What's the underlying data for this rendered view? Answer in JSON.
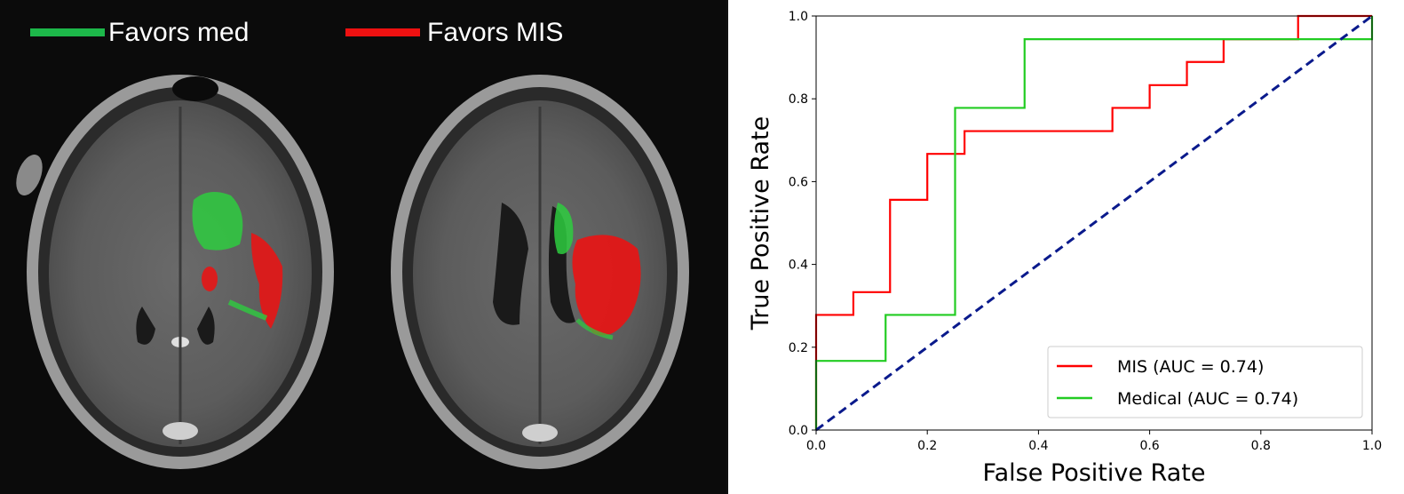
{
  "mri_legend": {
    "items": [
      {
        "label": "Favors med",
        "color": "#1db84a"
      },
      {
        "label": "Favors MIS",
        "color": "#ee1111"
      }
    ]
  },
  "chart_data": {
    "type": "line",
    "title": "",
    "xlabel": "False Positive Rate",
    "ylabel": "True Positive Rate",
    "xlim": [
      0.0,
      1.0
    ],
    "ylim": [
      0.0,
      1.0
    ],
    "xticks": [
      "0.0",
      "0.2",
      "0.4",
      "0.6",
      "0.8",
      "1.0"
    ],
    "yticks": [
      "0.0",
      "0.2",
      "0.4",
      "0.6",
      "0.8",
      "1.0"
    ],
    "grid": false,
    "legend_position": "lower-right",
    "series": [
      {
        "name": "MIS (AUC = 0.74)",
        "color": "#ff0000",
        "style": "solid",
        "x": [
          0,
          0,
          0.067,
          0.067,
          0.133,
          0.133,
          0.2,
          0.2,
          0.267,
          0.267,
          0.533,
          0.533,
          0.6,
          0.6,
          0.667,
          0.667,
          0.733,
          0.733,
          0.867,
          0.867,
          1.0
        ],
        "y": [
          0,
          0.278,
          0.278,
          0.333,
          0.333,
          0.556,
          0.556,
          0.667,
          0.667,
          0.722,
          0.722,
          0.778,
          0.778,
          0.833,
          0.833,
          0.889,
          0.889,
          0.944,
          0.944,
          1.0,
          1.0
        ]
      },
      {
        "name": "Medical (AUC = 0.74)",
        "color": "#22cc22",
        "style": "solid",
        "x": [
          0,
          0,
          0.125,
          0.125,
          0.25,
          0.25,
          0.375,
          0.375,
          1.0,
          1.0
        ],
        "y": [
          0,
          0.167,
          0.167,
          0.278,
          0.278,
          0.778,
          0.778,
          0.944,
          0.944,
          1.0
        ]
      },
      {
        "name": "",
        "color": "#0a1a8c",
        "style": "dashed",
        "x": [
          0,
          1
        ],
        "y": [
          0,
          1
        ]
      }
    ]
  }
}
